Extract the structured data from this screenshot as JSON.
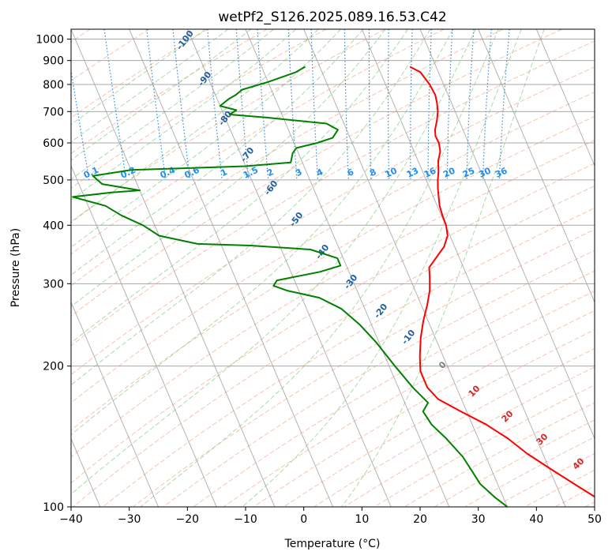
{
  "chart_data": {
    "type": "line",
    "title": "wetPf2_S126.2025.089.16.53.C42",
    "xlabel": "Temperature (°C)",
    "ylabel": "Pressure (hPa)",
    "xlim": [
      -40,
      50
    ],
    "ylim": [
      1050,
      100
    ],
    "y_scale": "log",
    "grid": true,
    "x_ticks": [
      -40,
      -30,
      -20,
      -10,
      0,
      10,
      20,
      30,
      40,
      50
    ],
    "x_tick_labels": [
      "−40",
      "−30",
      "−20",
      "−10",
      "0",
      "10",
      "20",
      "30",
      "40",
      "50"
    ],
    "y_ticks": [
      100,
      200,
      300,
      400,
      500,
      600,
      700,
      800,
      900,
      1000
    ],
    "y_tick_labels": [
      "100",
      "200",
      "300",
      "400",
      "500",
      "600",
      "700",
      "800",
      "900",
      "1000"
    ],
    "series": [
      {
        "color": "#ff0000",
        "points": [
          [
            15.5,
            873
          ],
          [
            16.9,
            850
          ],
          [
            17.6,
            800
          ],
          [
            17.8,
            760
          ],
          [
            17.5,
            730
          ],
          [
            17.0,
            700
          ],
          [
            16.2,
            670
          ],
          [
            15.2,
            640
          ],
          [
            14.8,
            620
          ],
          [
            14.9,
            600
          ],
          [
            14.5,
            575
          ],
          [
            13.5,
            550
          ],
          [
            12.7,
            520
          ],
          [
            12.0,
            500
          ],
          [
            11.4,
            480
          ],
          [
            10.9,
            460
          ],
          [
            10.4,
            440
          ],
          [
            10.2,
            420
          ],
          [
            10.1,
            400
          ],
          [
            9.6,
            380
          ],
          [
            8.2,
            360
          ],
          [
            5.9,
            340
          ],
          [
            4.1,
            325
          ],
          [
            3.5,
            310
          ],
          [
            2.5,
            290
          ],
          [
            1.0,
            270
          ],
          [
            -0.8,
            250
          ],
          [
            -2.5,
            230
          ],
          [
            -4.0,
            210
          ],
          [
            -5.0,
            195
          ],
          [
            -5.0,
            180
          ],
          [
            -4.0,
            170
          ],
          [
            -1.0,
            160
          ],
          [
            2.4,
            150
          ],
          [
            5.1,
            140
          ],
          [
            7.3,
            130
          ],
          [
            10.4,
            120
          ],
          [
            13.9,
            110
          ],
          [
            15.8,
            105
          ],
          [
            18.6,
            100
          ]
        ]
      },
      {
        "color": "#008000",
        "points": [
          [
            -2.5,
            873
          ],
          [
            -4.5,
            850
          ],
          [
            -10.0,
            810
          ],
          [
            -15.0,
            780
          ],
          [
            -16.5,
            760
          ],
          [
            -18.0,
            745
          ],
          [
            -20.0,
            720
          ],
          [
            -17.5,
            705
          ],
          [
            -19.0,
            690
          ],
          [
            -13.0,
            680
          ],
          [
            -3.0,
            660
          ],
          [
            -1.5,
            640
          ],
          [
            -3.0,
            615
          ],
          [
            -6.0,
            600
          ],
          [
            -10.0,
            585
          ],
          [
            -11.0,
            570
          ],
          [
            -12.0,
            545
          ],
          [
            -20.0,
            535
          ],
          [
            -40.0,
            525
          ],
          [
            -47.0,
            510
          ],
          [
            -46.0,
            490
          ],
          [
            -40.0,
            475
          ],
          [
            -45.0,
            470
          ],
          [
            -52.0,
            460
          ],
          [
            -47.0,
            440
          ],
          [
            -45.0,
            420
          ],
          [
            -42.0,
            400
          ],
          [
            -40.0,
            380
          ],
          [
            -34.0,
            365
          ],
          [
            -25.0,
            362
          ],
          [
            -15.0,
            355
          ],
          [
            -11.0,
            340
          ],
          [
            -11.0,
            328
          ],
          [
            -15.0,
            318
          ],
          [
            -23.0,
            305
          ],
          [
            -24.0,
            297
          ],
          [
            -22.0,
            290
          ],
          [
            -17.0,
            280
          ],
          [
            -14.0,
            265
          ],
          [
            -12.0,
            245
          ],
          [
            -10.5,
            225
          ],
          [
            -9.0,
            200
          ],
          [
            -7.5,
            180
          ],
          [
            -6.0,
            167
          ],
          [
            -7.5,
            160
          ],
          [
            -7.0,
            150
          ],
          [
            -5.5,
            140
          ],
          [
            -4.0,
            128
          ],
          [
            -3.5,
            120
          ],
          [
            -3.0,
            112
          ],
          [
            -1.5,
            105
          ],
          [
            0.0,
            100
          ]
        ]
      }
    ],
    "dry_adiabat_labels": [
      "-100",
      "-90",
      "-80",
      "-70",
      "-60",
      "-50",
      "-40",
      "-30",
      "-20",
      "-10"
    ],
    "mixing_ratio_labels": [
      "0.1",
      "0.2",
      "0.4",
      "0.6",
      "1",
      "1.5",
      "2",
      "3",
      "4",
      "6",
      "8",
      "10",
      "13",
      "16",
      "20",
      "25",
      "30",
      "36"
    ],
    "moist_adiabat_labels": [
      "0",
      "10",
      "20",
      "30",
      "40"
    ]
  },
  "colors": {
    "temperature": "#ff0000",
    "dewpoint": "#008000",
    "dry_adiabat": "#f4a582",
    "moist_adiabat": "#8fcf8f",
    "mixing_ratio": "#1f8ef1",
    "isotherm": "#9a9a9a",
    "dry_label": "#1f5f9f",
    "moist_label": "#d62728"
  }
}
